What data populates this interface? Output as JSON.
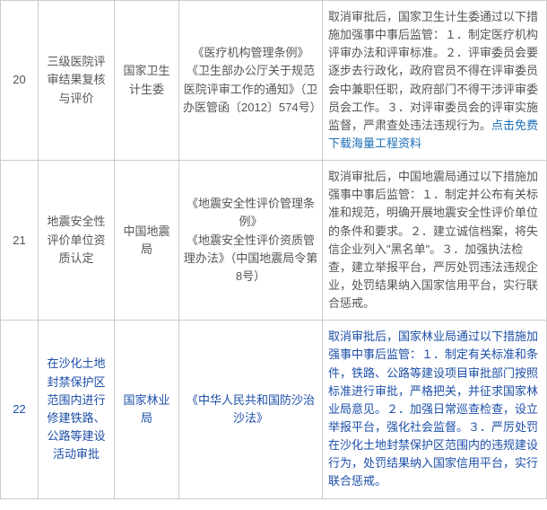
{
  "rows": [
    {
      "num": "20",
      "item": "三级医院评审结果复核与评价",
      "dept": "国家卫生计生委",
      "basis": "《医疗机构管理条例》\n《卫生部办公厅关于规范医院评审工作的通知》（卫办医管函〔2012〕574号）",
      "desc": "取消审批后，国家卫生计生委通过以下措施加强事中事后监管：１．制定医疗机构评审办法和评审标准。２．评审委员会要逐步去行政化，政府官员不得在评审委员会中兼职任职，政府部门不得干涉评审委员会工作。３．对评审委员会的评审实施监督，严肃查处违法违规行为。",
      "link": "点击免费下载海量工程资料",
      "blue": false
    },
    {
      "num": "21",
      "item": "地震安全性评价单位资质认定",
      "dept": "中国地震局",
      "basis": "《地震安全性评价管理条例》\n《地震安全性评价资质管理办法》（中国地震局令第8号）",
      "desc": "取消审批后，中国地震局通过以下措施加强事中事后监管：１．制定并公布有关标准和规范，明确开展地震安全性评价单位的条件和要求。２．建立诚信档案，将失信企业列入\"黑名单\"。３．加强执法检查，建立举报平台，严厉处罚违法违规企业，处罚结果纳入国家信用平台，实行联合惩戒。",
      "link": "",
      "blue": false
    },
    {
      "num": "22",
      "item": "在沙化土地封禁保护区范围内进行修建铁路、公路等建设活动审批",
      "dept": "国家林业局",
      "basis": "《中华人民共和国防沙治沙法》",
      "desc": "取消审批后，国家林业局通过以下措施加强事中事后监管：１．制定有关标准和条件，铁路、公路等建设项目审批部门按照标准进行审批，严格把关，并征求国家林业局意见。２．加强日常巡查检查，设立举报平台，强化社会监督。３．严厉处罚在沙化土地封禁保护区范围内的违规建设行为，处罚结果纳入国家信用平台，实行联合惩戒。",
      "link": "",
      "blue": true
    }
  ]
}
